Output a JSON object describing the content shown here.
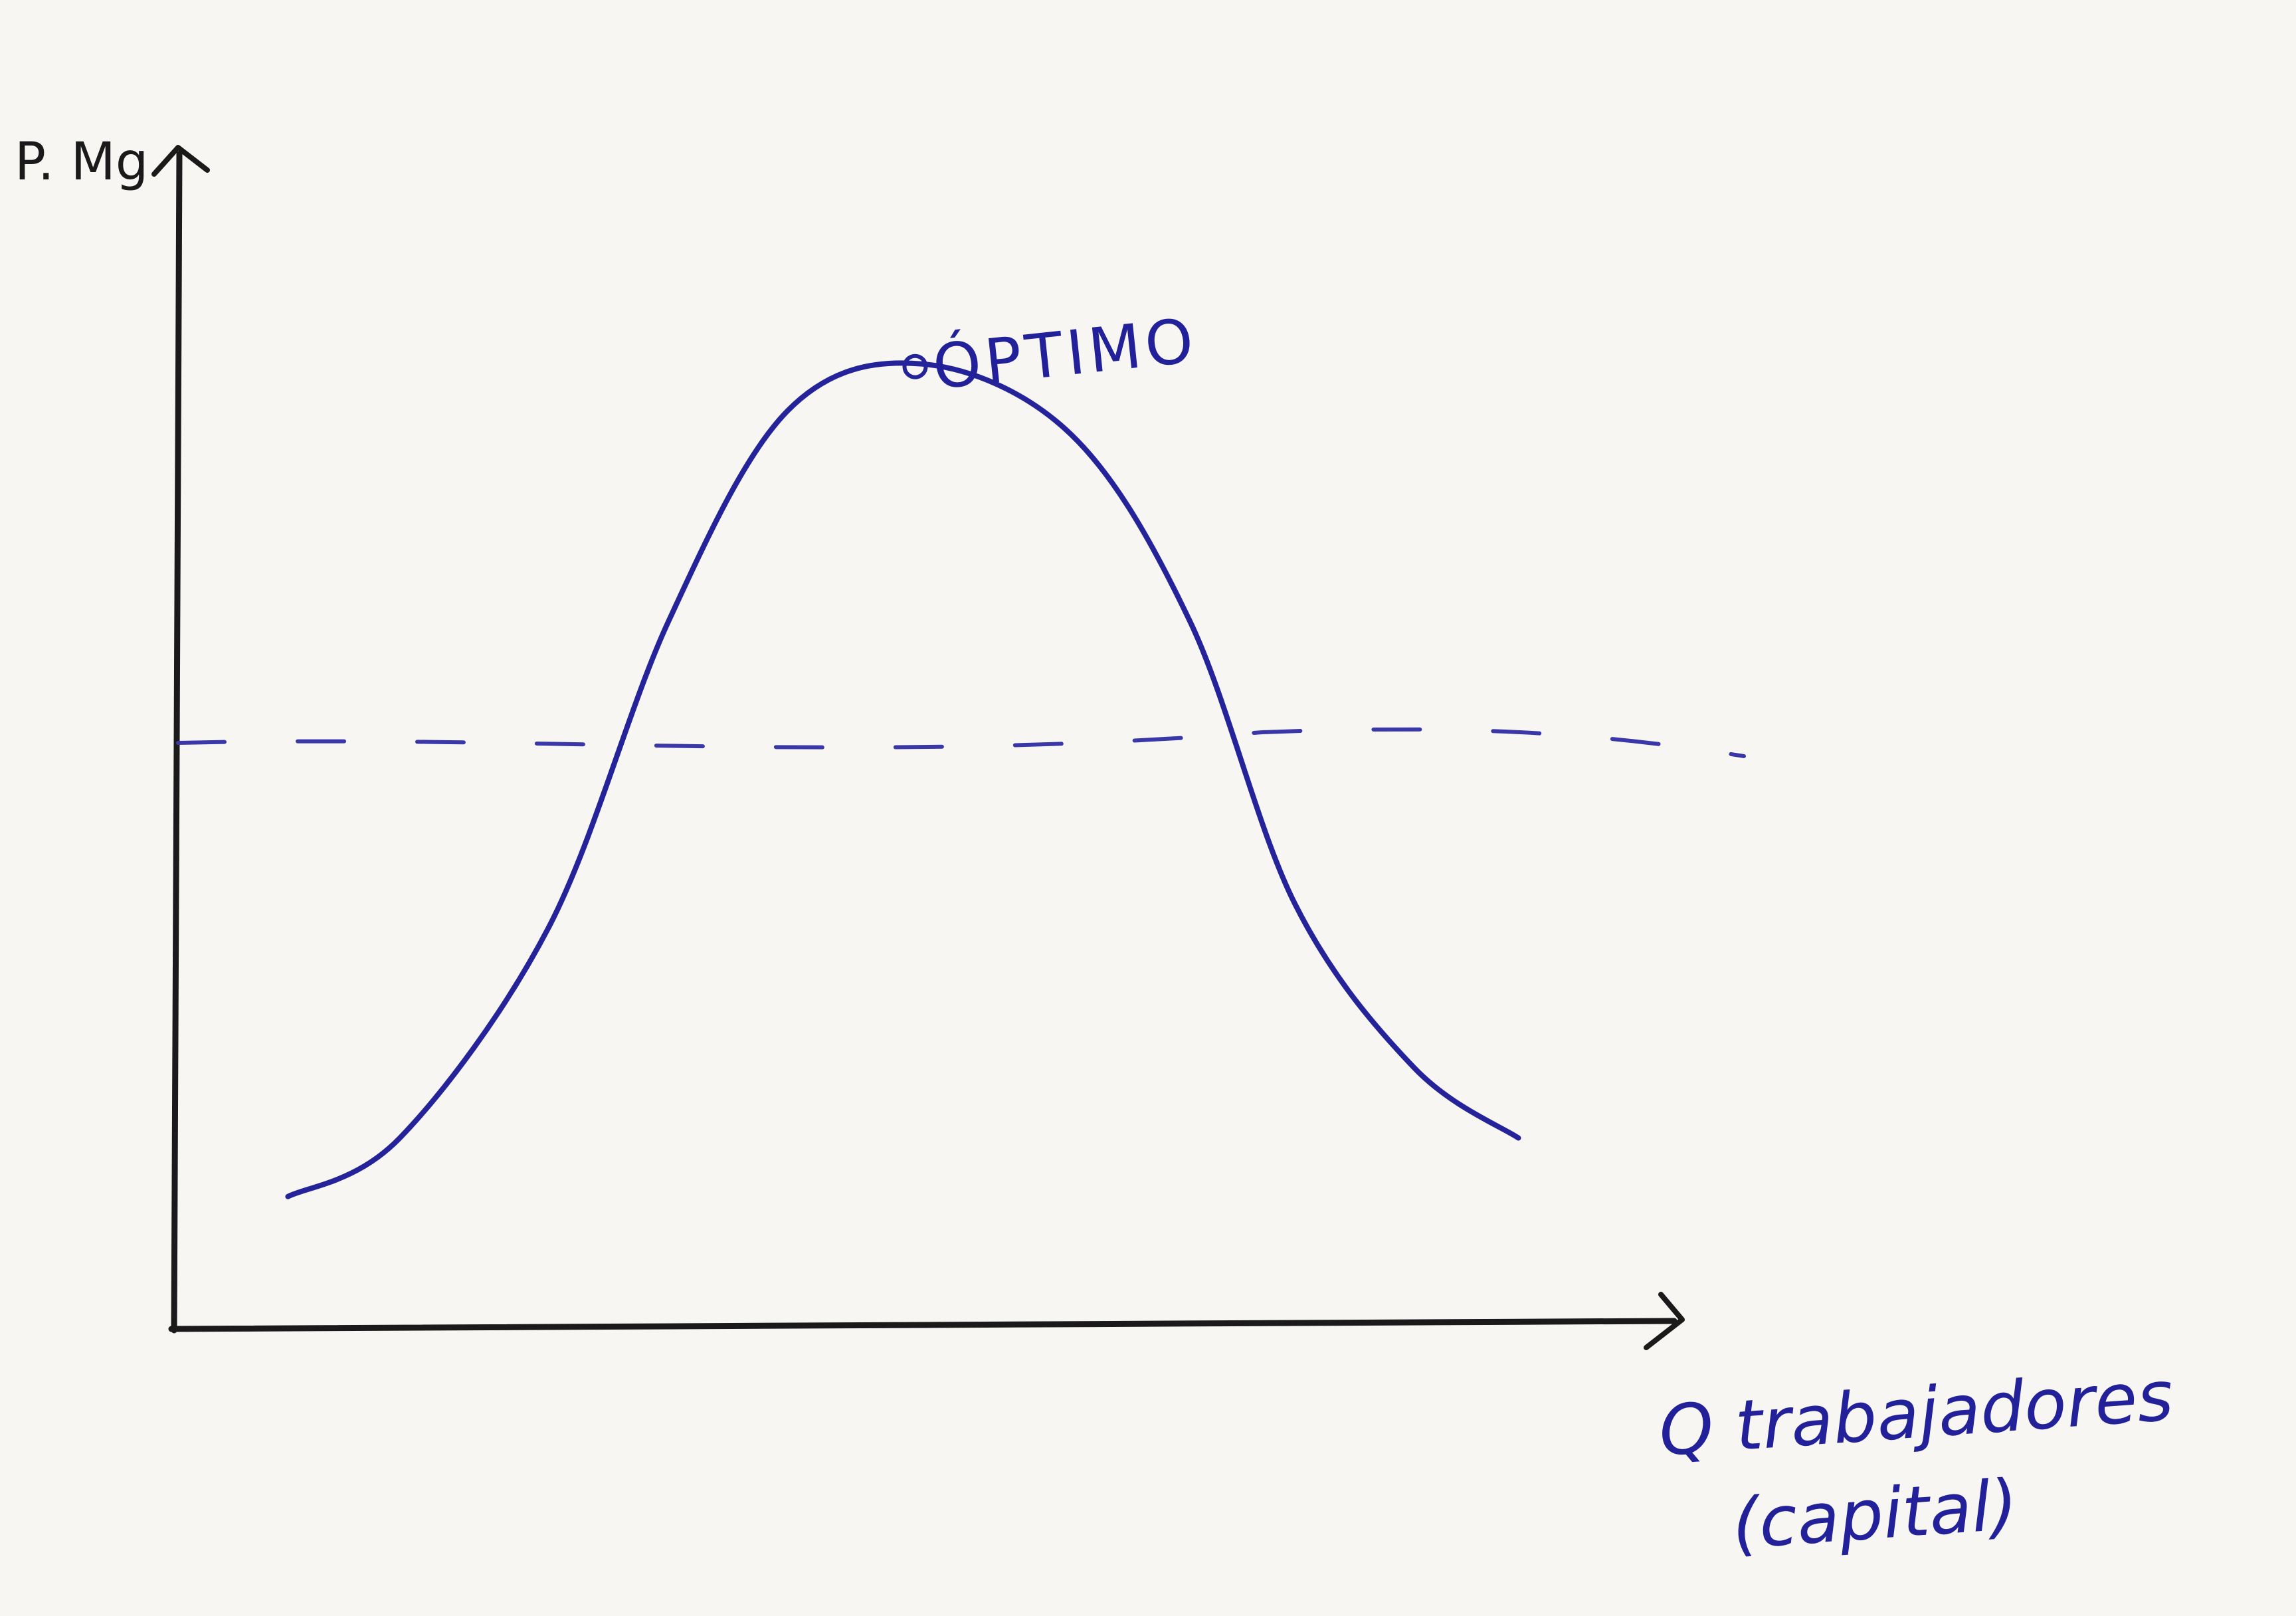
{
  "chart_data": {
    "type": "line",
    "title": "",
    "ylabel": "P. Mg",
    "xlabel_line1": "Q trabajadores",
    "xlabel_line2": "(capital)",
    "grid": false,
    "x_range": [
      0,
      10
    ],
    "y_range": [
      0,
      10
    ],
    "series": [
      {
        "values_x": [
          0.75,
          1.5,
          2.5,
          3.3,
          4.1,
          5.0,
          6.0,
          6.8,
          7.5,
          8.3,
          9.0
        ],
        "values_y": [
          1.1,
          1.6,
          3.4,
          6.0,
          7.8,
          8.2,
          7.6,
          6.0,
          3.6,
          2.2,
          1.6
        ]
      }
    ],
    "reference_line": {
      "style": "dashed",
      "y": 5.1
    },
    "annotations": [
      {
        "text": "ÓPTIMO",
        "x": 5.0,
        "y": 8.2
      }
    ],
    "colors": {
      "axes": "#1a1a1a",
      "curve": "#24239a",
      "dashed": "#3a38a8",
      "labels_blue": "#22219a"
    }
  }
}
